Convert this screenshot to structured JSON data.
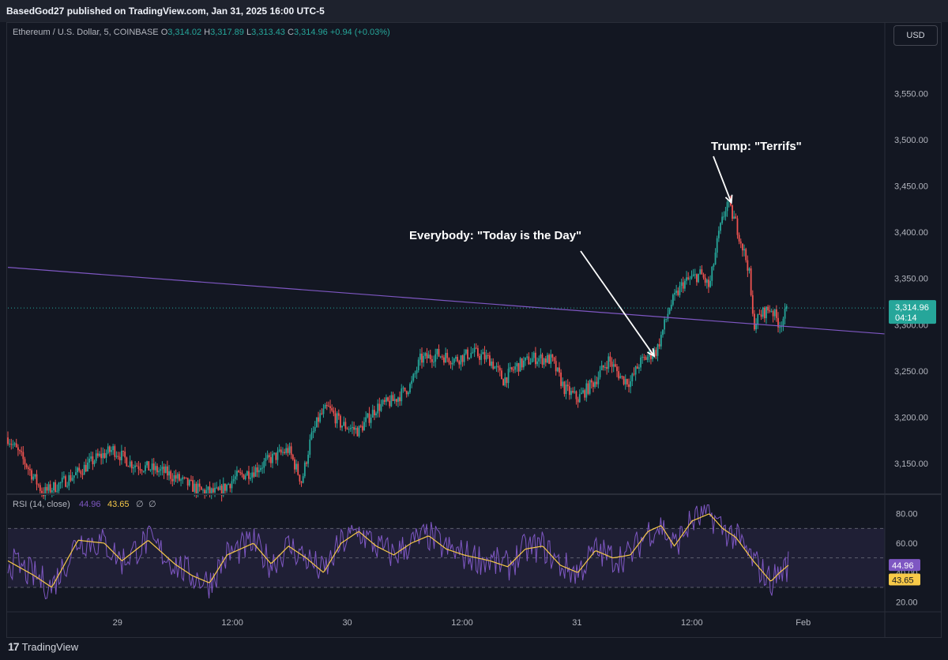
{
  "header": {
    "published": "BasedGod27 published on TradingView.com, Jan 31, 2025 16:00 UTC-5"
  },
  "legend": {
    "symbol": "Ethereum / U.S. Dollar, 5, COINBASE",
    "o_label": "O",
    "o": "3,314.02",
    "h_label": "H",
    "h": "3,317.89",
    "l_label": "L",
    "l": "3,313.43",
    "c_label": "C",
    "c": "3,314.96",
    "change": "+0.94 (+0.03%)"
  },
  "currency_button": "USD",
  "footer": {
    "brand": "TradingView",
    "logo": "17"
  },
  "colors": {
    "background": "#131722",
    "up": "#26a69a",
    "down": "#ef5350",
    "trendline": "#7e57c2",
    "rsi_line": "#7e57c2",
    "rsi_ma": "#f7c948"
  },
  "chart_data": [
    {
      "type": "candlestick",
      "title": "Ethereum / U.S. Dollar, 5, COINBASE",
      "ylim": [
        3120,
        3600
      ],
      "yticks": [
        "3,550.00",
        "3,500.00",
        "3,450.00",
        "3,400.00",
        "3,350.00",
        "3,300.00",
        "3,250.00",
        "3,200.00",
        "3,150.00"
      ],
      "ytick_values": [
        3550,
        3500,
        3450,
        3400,
        3350,
        3300,
        3250,
        3200,
        3150
      ],
      "xticks": [
        "29",
        "12:00",
        "30",
        "12:00",
        "31",
        "12:00",
        "Feb"
      ],
      "price_path": [
        [
          0,
          3178
        ],
        [
          0.02,
          3150
        ],
        [
          0.04,
          3118
        ],
        [
          0.06,
          3128
        ],
        [
          0.08,
          3140
        ],
        [
          0.1,
          3155
        ],
        [
          0.12,
          3165
        ],
        [
          0.14,
          3150
        ],
        [
          0.16,
          3145
        ],
        [
          0.18,
          3140
        ],
        [
          0.2,
          3130
        ],
        [
          0.22,
          3120
        ],
        [
          0.24,
          3118
        ],
        [
          0.26,
          3135
        ],
        [
          0.28,
          3142
        ],
        [
          0.3,
          3155
        ],
        [
          0.32,
          3165
        ],
        [
          0.335,
          3130
        ],
        [
          0.345,
          3175
        ],
        [
          0.355,
          3200
        ],
        [
          0.365,
          3210
        ],
        [
          0.38,
          3192
        ],
        [
          0.4,
          3185
        ],
        [
          0.42,
          3210
        ],
        [
          0.44,
          3218
        ],
        [
          0.46,
          3235
        ],
        [
          0.47,
          3262
        ],
        [
          0.49,
          3268
        ],
        [
          0.51,
          3262
        ],
        [
          0.53,
          3270
        ],
        [
          0.55,
          3262
        ],
        [
          0.565,
          3240
        ],
        [
          0.58,
          3255
        ],
        [
          0.6,
          3264
        ],
        [
          0.62,
          3262
        ],
        [
          0.635,
          3230
        ],
        [
          0.65,
          3220
        ],
        [
          0.67,
          3240
        ],
        [
          0.685,
          3262
        ],
        [
          0.7,
          3242
        ],
        [
          0.71,
          3238
        ],
        [
          0.72,
          3258
        ],
        [
          0.73,
          3266
        ],
        [
          0.74,
          3272
        ],
        [
          0.755,
          3320
        ],
        [
          0.77,
          3345
        ],
        [
          0.79,
          3355
        ],
        [
          0.8,
          3340
        ],
        [
          0.81,
          3395
        ],
        [
          0.82,
          3432
        ],
        [
          0.83,
          3410
        ],
        [
          0.845,
          3360
        ],
        [
          0.85,
          3300
        ],
        [
          0.86,
          3312
        ],
        [
          0.87,
          3318
        ],
        [
          0.88,
          3300
        ],
        [
          0.89,
          3318
        ]
      ],
      "last_price": "3,314.96",
      "countdown": "04:14",
      "trendline": {
        "start": [
          0,
          3362
        ],
        "end": [
          1.0,
          3290
        ]
      },
      "annotations": [
        {
          "text": "Trump: \"Terrifs\"",
          "target": [
            0.825,
            3432
          ]
        },
        {
          "text": "Everybody: \"Today is the Day\"",
          "target": [
            0.737,
            3266
          ]
        }
      ]
    },
    {
      "type": "line",
      "title": "RSI (14, close)",
      "values_label": [
        "44.96",
        "43.65",
        "∅",
        "∅"
      ],
      "ylim": [
        15,
        90
      ],
      "yticks": [
        "80.00",
        "60.00",
        "40.00",
        "20.00"
      ],
      "ytick_values": [
        80,
        60,
        40,
        20
      ],
      "band": [
        30,
        70
      ],
      "midline": 50,
      "rsi_path": [
        [
          0,
          48
        ],
        [
          0.03,
          38
        ],
        [
          0.05,
          30
        ],
        [
          0.08,
          62
        ],
        [
          0.11,
          60
        ],
        [
          0.13,
          48
        ],
        [
          0.16,
          62
        ],
        [
          0.19,
          46
        ],
        [
          0.21,
          38
        ],
        [
          0.23,
          33
        ],
        [
          0.25,
          52
        ],
        [
          0.28,
          60
        ],
        [
          0.3,
          46
        ],
        [
          0.32,
          58
        ],
        [
          0.34,
          50
        ],
        [
          0.36,
          40
        ],
        [
          0.38,
          60
        ],
        [
          0.4,
          68
        ],
        [
          0.42,
          58
        ],
        [
          0.44,
          52
        ],
        [
          0.46,
          60
        ],
        [
          0.48,
          65
        ],
        [
          0.5,
          56
        ],
        [
          0.52,
          52
        ],
        [
          0.55,
          48
        ],
        [
          0.57,
          44
        ],
        [
          0.59,
          56
        ],
        [
          0.61,
          58
        ],
        [
          0.63,
          45
        ],
        [
          0.65,
          40
        ],
        [
          0.67,
          55
        ],
        [
          0.69,
          50
        ],
        [
          0.71,
          52
        ],
        [
          0.73,
          68
        ],
        [
          0.745,
          72
        ],
        [
          0.76,
          58
        ],
        [
          0.78,
          75
        ],
        [
          0.8,
          80
        ],
        [
          0.815,
          70
        ],
        [
          0.83,
          64
        ],
        [
          0.85,
          48
        ],
        [
          0.87,
          34
        ],
        [
          0.88,
          40
        ],
        [
          0.89,
          45
        ]
      ],
      "rsi_value": "44.96",
      "rsi_ma_value": "43.65"
    }
  ]
}
